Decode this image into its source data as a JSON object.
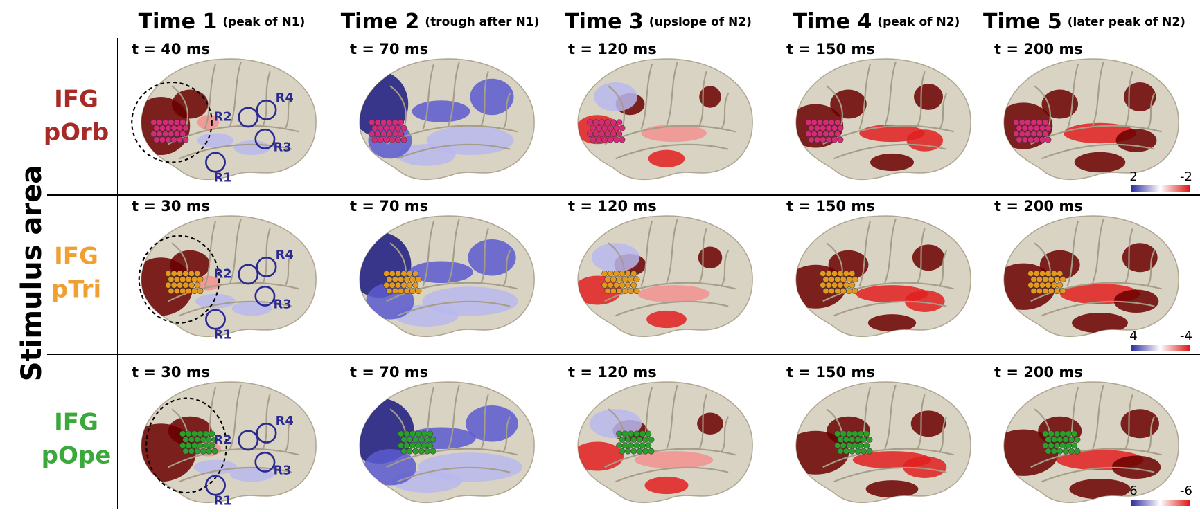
{
  "y_axis_label": "Stimulus area",
  "columns": [
    {
      "title": "Time 1",
      "subtitle": "(peak of N1)"
    },
    {
      "title": "Time 2",
      "subtitle": "(trough after N1)"
    },
    {
      "title": "Time 3",
      "subtitle": "(upslope of N2)"
    },
    {
      "title": "Time 4",
      "subtitle": "(peak of N2)"
    },
    {
      "title": "Time 5",
      "subtitle": "(later peak of N2)"
    }
  ],
  "rows": [
    {
      "label": [
        "IFG",
        "pOrb"
      ],
      "color": "#a82a26",
      "times": [
        "t = 40 ms",
        "t = 70 ms",
        "t = 120 ms",
        "t = 150 ms",
        "t = 200 ms"
      ],
      "colorbar": [
        2,
        -2
      ]
    },
    {
      "label": [
        "IFG",
        "pTri"
      ],
      "color": "#f0a032",
      "times": [
        "t = 30 ms",
        "t = 70 ms",
        "t = 120 ms",
        "t = 150 ms",
        "t = 200 ms"
      ],
      "colorbar": [
        4,
        -4
      ]
    },
    {
      "label": [
        "IFG",
        "pOpe"
      ],
      "color": "#3aa83a",
      "times": [
        "t = 30 ms",
        "t = 70 ms",
        "t = 120 ms",
        "t = 150 ms",
        "t = 200 ms"
      ],
      "colorbar": [
        6,
        -6
      ]
    }
  ],
  "regions": [
    "R1",
    "R2",
    "R3",
    "R4"
  ]
}
